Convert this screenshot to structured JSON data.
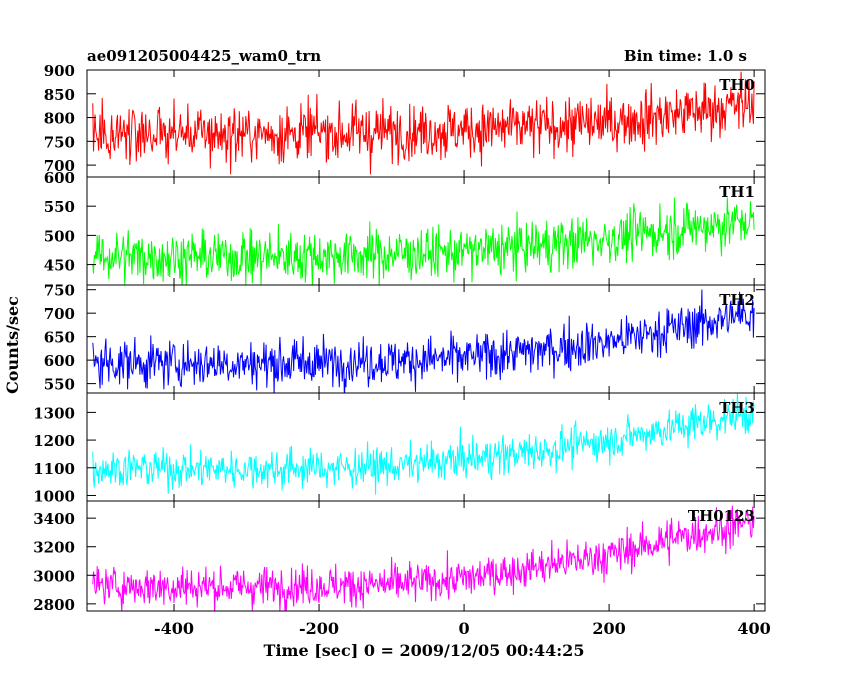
{
  "header": {
    "left_title": "ae091205004425_wam0_trn",
    "right_title": "Bin time: 1.0 s"
  },
  "chart_data": {
    "type": "line",
    "x_start": -512,
    "x_end": 400,
    "x_step": 1,
    "xlabel": "Time [sec] 0 = 2009/12/05 00:44:25",
    "ylabel": "Counts/sec",
    "xlim": [
      -520,
      415
    ],
    "x_ticks": [
      -400,
      -200,
      0,
      200,
      400
    ],
    "shared_x_axis": true,
    "grid": false,
    "panels": [
      {
        "name": "TH0",
        "color": "#ff0000",
        "ylim": [
          675,
          900
        ],
        "y_ticks": [
          700,
          750,
          800,
          850,
          900
        ],
        "trend": {
          "x": [
            -512,
            -300,
            -100,
            0,
            100,
            200,
            300,
            400
          ],
          "y": [
            768,
            765,
            770,
            775,
            780,
            790,
            810,
            830
          ]
        },
        "noise_sd": 30
      },
      {
        "name": "TH1",
        "color": "#00ff00",
        "ylim": [
          415,
          600
        ],
        "y_ticks": [
          450,
          500,
          550,
          600
        ],
        "trend": {
          "x": [
            -512,
            -300,
            -100,
            0,
            100,
            200,
            300,
            400
          ],
          "y": [
            465,
            463,
            468,
            472,
            482,
            495,
            512,
            525
          ]
        },
        "noise_sd": 22
      },
      {
        "name": "TH2",
        "color": "#0000ff",
        "ylim": [
          530,
          760
        ],
        "y_ticks": [
          550,
          600,
          650,
          700,
          750
        ],
        "trend": {
          "x": [
            -512,
            -300,
            -100,
            0,
            100,
            200,
            300,
            400
          ],
          "y": [
            595,
            593,
            598,
            605,
            620,
            640,
            670,
            700
          ]
        },
        "noise_sd": 25
      },
      {
        "name": "TH3",
        "color": "#00ffff",
        "ylim": [
          980,
          1370
        ],
        "y_ticks": [
          1000,
          1100,
          1200,
          1300
        ],
        "trend": {
          "x": [
            -512,
            -300,
            -100,
            0,
            100,
            200,
            300,
            400
          ],
          "y": [
            1100,
            1095,
            1105,
            1130,
            1160,
            1200,
            1250,
            1300
          ]
        },
        "noise_sd": 35
      },
      {
        "name": "TH0123",
        "color": "#ff00ff",
        "ylim": [
          2750,
          3520
        ],
        "y_ticks": [
          2800,
          3000,
          3200,
          3400
        ],
        "trend": {
          "x": [
            -512,
            -300,
            -100,
            0,
            100,
            200,
            300,
            400
          ],
          "y": [
            2925,
            2920,
            2935,
            2975,
            3060,
            3140,
            3270,
            3380
          ]
        },
        "noise_sd": 70
      }
    ]
  }
}
